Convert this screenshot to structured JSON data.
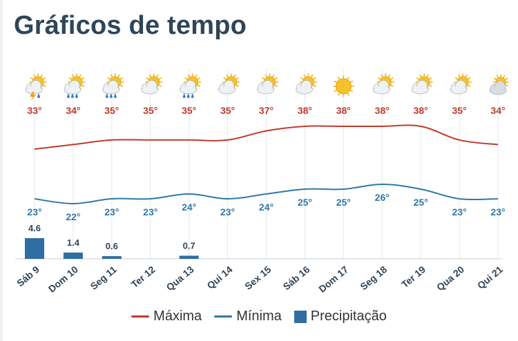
{
  "title": "Gráficos de tempo",
  "colors": {
    "max": "#c0392b",
    "min": "#2f79a6",
    "precip": "#2f6ea3",
    "temp_label_max": "#c0392b",
    "temp_label_min": "#2f79a6"
  },
  "chart_data": {
    "type": "line",
    "categories": [
      "Sáb 9",
      "Dom 10",
      "Seg 11",
      "Ter 12",
      "Qua 13",
      "Qui 14",
      "Sex 15",
      "Sáb 16",
      "Dom 17",
      "Seg 18",
      "Ter 19",
      "Qua 20",
      "Qui 21"
    ],
    "icons": [
      "thunderstorm-sun-icon",
      "rain-sun-icon",
      "rain-sun-icon",
      "partly-cloudy-icon",
      "rain-sun-icon",
      "partly-cloudy-icon",
      "partly-cloudy-icon",
      "partly-cloudy-icon",
      "sunny-icon",
      "partly-cloudy-icon",
      "partly-cloudy-icon",
      "partly-cloudy-icon",
      "cloudy-icon"
    ],
    "series": [
      {
        "name": "Máxima",
        "values": [
          33,
          34,
          35,
          35,
          35,
          35,
          37,
          38,
          38,
          38,
          38,
          35,
          34
        ],
        "labels": [
          "33°",
          "34°",
          "35°",
          "35°",
          "35°",
          "35°",
          "37°",
          "38°",
          "38°",
          "38°",
          "38°",
          "35°",
          "34°"
        ]
      },
      {
        "name": "Mínima",
        "values": [
          23,
          22,
          23,
          23,
          24,
          23,
          24,
          25,
          25,
          26,
          25,
          23,
          23
        ],
        "labels": [
          "23°",
          "22°",
          "23°",
          "23°",
          "24°",
          "23°",
          "24°",
          "25°",
          "25°",
          "26°",
          "25°",
          "23°",
          "23°"
        ]
      },
      {
        "name": "Precipitação",
        "type": "bar",
        "values": [
          4.6,
          1.4,
          0.6,
          0,
          0.7,
          0,
          0,
          0,
          0,
          0,
          0,
          0,
          0
        ],
        "labels": [
          "4.6",
          "1.4",
          "0.6",
          "",
          "0.7",
          "",
          "",
          "",
          "",
          "",
          "",
          "",
          ""
        ]
      }
    ],
    "legend": [
      "Máxima",
      "Mínima",
      "Precipitação"
    ],
    "legend_position": "bottom",
    "grid": "vertical"
  }
}
